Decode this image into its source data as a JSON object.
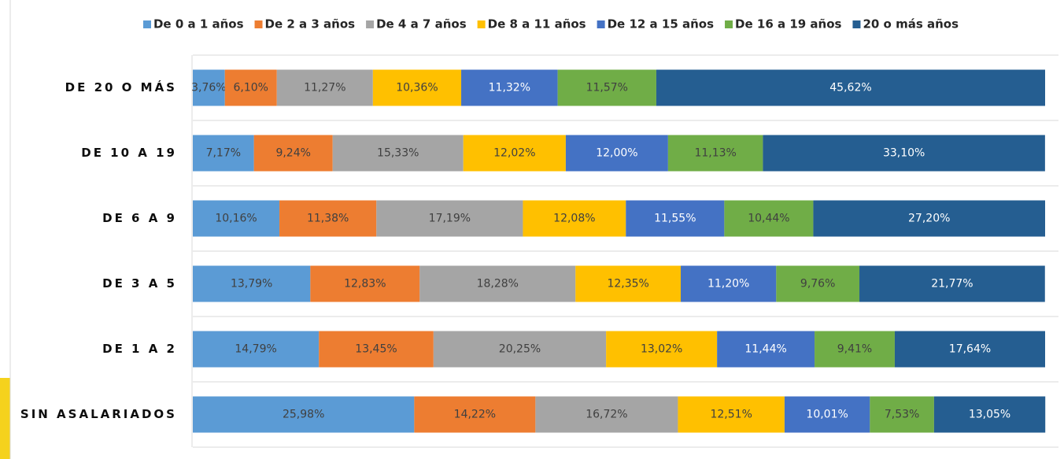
{
  "chart_data": {
    "type": "stacked_bar_horizontal",
    "categories": [
      "DE 20 O MÁS",
      "DE 10 A 19",
      "DE 6 A 9",
      "DE 3 A 5",
      "DE 1 A 2",
      "SIN ASALARIADOS"
    ],
    "xlim": [
      0,
      100
    ],
    "legend": "top",
    "series": [
      {
        "name": "De 0 a 1 años",
        "color": "#5b9bd5",
        "values": [
          3.76,
          7.17,
          10.16,
          13.79,
          14.79,
          25.98
        ],
        "value_labels": [
          "3,76%",
          "7,17%",
          "10,16%",
          "13,79%",
          "14,79%",
          "25,98%"
        ]
      },
      {
        "name": "De 2 a 3 años",
        "color": "#ed7d31",
        "values": [
          6.1,
          9.24,
          11.38,
          12.83,
          13.45,
          14.22
        ],
        "value_labels": [
          "6,10%",
          "9,24%",
          "11,38%",
          "12,83%",
          "13,45%",
          "14,22%"
        ]
      },
      {
        "name": "De 4 a 7 años",
        "color": "#a5a5a5",
        "values": [
          11.27,
          15.33,
          17.19,
          18.28,
          20.25,
          16.72
        ],
        "value_labels": [
          "11,27%",
          "15,33%",
          "17,19%",
          "18,28%",
          "20,25%",
          "16,72%"
        ]
      },
      {
        "name": "De 8 a 11 años",
        "color": "#ffc000",
        "values": [
          10.36,
          12.02,
          12.08,
          12.35,
          13.02,
          12.51
        ],
        "value_labels": [
          "10,36%",
          "12,02%",
          "12,08%",
          "12,35%",
          "13,02%",
          "12,51%"
        ]
      },
      {
        "name": "De 12 a 15 años",
        "color": "#4472c4",
        "values": [
          11.32,
          12.0,
          11.55,
          11.2,
          11.44,
          10.01
        ],
        "value_labels": [
          "11,32%",
          "12,00%",
          "11,55%",
          "11,20%",
          "11,44%",
          "10,01%"
        ]
      },
      {
        "name": "De 16 a 19 años",
        "color": "#70ad47",
        "values": [
          11.57,
          11.13,
          10.44,
          9.76,
          9.41,
          7.53
        ],
        "value_labels": [
          "11,57%",
          "11,13%",
          "10,44%",
          "9,76%",
          "9,41%",
          "7,53%"
        ]
      },
      {
        "name": "20 o más años",
        "color": "#255e91",
        "values": [
          45.62,
          33.1,
          27.2,
          21.77,
          17.64,
          13.05
        ],
        "value_labels": [
          "45,62%",
          "33,10%",
          "27,20%",
          "21,77%",
          "17,64%",
          "13,05%"
        ]
      }
    ]
  }
}
